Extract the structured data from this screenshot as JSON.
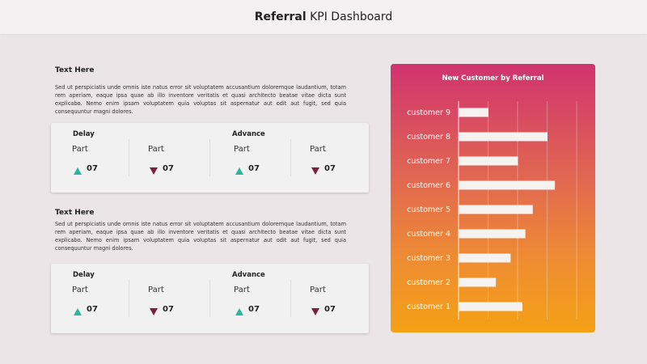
{
  "header": {
    "title_bold": "Referral",
    "title_rest": " KPI Dashboard"
  },
  "sections": [
    {
      "title": "Text Here",
      "paragraph": "Sed ut perspiciatis unde omnis iste natus error sit voluptatem accusantium doloremque laudantium, totam rem aperiam, eaque ipsa quae ab illo inventore veritatis et quasi architecto beatae vitae dicta sunt explicabo. Nemo enim ipsam voluptatem quia voluptas sit aspernatur aut odit aut fugit, sed quia consequuntur magni dolores.",
      "card": {
        "delay_label": "Delay",
        "advance_label": "Advance",
        "items": [
          {
            "label": "Part",
            "value": "07",
            "direction": "up"
          },
          {
            "label": "Part",
            "value": "07",
            "direction": "down"
          },
          {
            "label": "Part",
            "value": "07",
            "direction": "up"
          },
          {
            "label": "Part",
            "value": "07",
            "direction": "down"
          }
        ]
      }
    },
    {
      "title": "Text Here",
      "paragraph": "Sed ut perspiciatis unde omnis iste natus error sit voluptatem accusantium doloremque laudantium, totam rem aperiam, eaque ipsa quae ab illo inventore veritatis et quasi architecto beatae vitae dicta sunt explicabo. Nemo enim ipsam voluptatem quia voluptas sit aspernatur aut odit aut fugit, sed quia consequuntur magni dolores.",
      "card": {
        "delay_label": "Delay",
        "advance_label": "Advance",
        "items": [
          {
            "label": "Part",
            "value": "07",
            "direction": "up"
          },
          {
            "label": "Part",
            "value": "07",
            "direction": "down"
          },
          {
            "label": "Part",
            "value": "07",
            "direction": "up"
          },
          {
            "label": "Part",
            "value": "07",
            "direction": "down"
          }
        ]
      }
    }
  ],
  "colors": {
    "up": "#2bb5a0",
    "down": "#7a1f3d",
    "bar": "#f5f2f0",
    "panel_top": "#d0336f",
    "panel_bottom": "#f4a014"
  },
  "chart_data": {
    "type": "bar",
    "orientation": "horizontal",
    "title": "New Customer by Referral",
    "categories": [
      "customer 9",
      "customer 8",
      "customer 7",
      "customer 6",
      "customer 5",
      "customer 4",
      "customer 3",
      "customer 2",
      "customer 1"
    ],
    "values": [
      20,
      60,
      40,
      65,
      50,
      45,
      35,
      25,
      43
    ],
    "xlim": [
      0,
      80
    ],
    "grid": true,
    "legend": "none"
  }
}
